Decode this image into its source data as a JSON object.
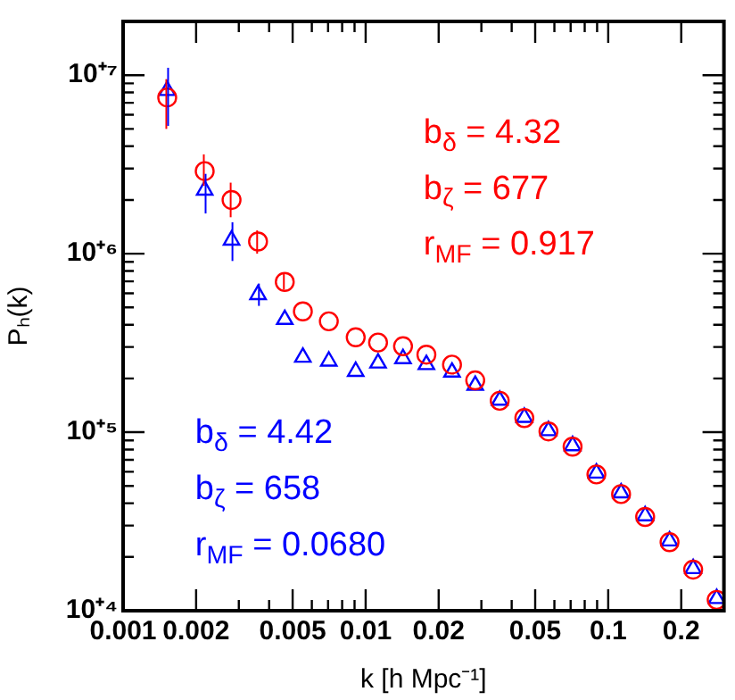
{
  "chart_data": {
    "type": "scatter",
    "xlabel": "k [h Mpc⁻¹]",
    "ylabel": "Pₕ(k)",
    "log": "xy",
    "grid": false,
    "legend": false,
    "xlim": [
      0.001,
      0.3
    ],
    "xticks": [
      0.001,
      0.002,
      {
        "value": 0.003,
        "label": null
      },
      {
        "value": 0.004,
        "label": null
      },
      0.005,
      {
        "value": 0.006,
        "label": null
      },
      {
        "value": 0.007,
        "label": null
      },
      {
        "value": 0.008,
        "label": null
      },
      {
        "value": 0.009,
        "label": null
      },
      0.01,
      0.02,
      {
        "value": 0.03,
        "label": null
      },
      {
        "value": 0.04,
        "label": null
      },
      0.05,
      {
        "value": 0.06,
        "label": null
      },
      {
        "value": 0.07,
        "label": null
      },
      {
        "value": 0.08,
        "label": null
      },
      {
        "value": 0.09,
        "label": null
      },
      0.1,
      0.2
    ],
    "ylim": [
      10000,
      20000000
    ],
    "yticks": [
      {
        "value": 10000,
        "label": "10⁺⁴"
      },
      {
        "value": 20000,
        "label": null
      },
      {
        "value": 30000,
        "label": null
      },
      {
        "value": 40000,
        "label": null
      },
      {
        "value": 50000,
        "label": null
      },
      {
        "value": 60000,
        "label": null
      },
      {
        "value": 70000,
        "label": null
      },
      {
        "value": 80000,
        "label": null
      },
      {
        "value": 90000,
        "label": null
      },
      {
        "value": 100000,
        "label": "10⁺⁵"
      },
      {
        "value": 200000,
        "label": null
      },
      {
        "value": 300000,
        "label": null
      },
      {
        "value": 400000,
        "label": null
      },
      {
        "value": 500000,
        "label": null
      },
      {
        "value": 600000,
        "label": null
      },
      {
        "value": 700000,
        "label": null
      },
      {
        "value": 800000,
        "label": null
      },
      {
        "value": 900000,
        "label": null
      },
      {
        "value": 1000000,
        "label": "10⁺⁶"
      },
      {
        "value": 2000000,
        "label": null
      },
      {
        "value": 3000000,
        "label": null
      },
      {
        "value": 4000000,
        "label": null
      },
      {
        "value": 5000000,
        "label": null
      },
      {
        "value": 6000000,
        "label": null
      },
      {
        "value": 7000000,
        "label": null
      },
      {
        "value": 8000000,
        "label": null
      },
      {
        "value": 9000000,
        "label": null
      },
      {
        "value": 10000000,
        "label": "10⁺⁷"
      }
    ],
    "x": [
      0.00152,
      0.00217,
      0.0028,
      0.0036,
      0.00464,
      0.00551,
      0.00705,
      0.0091,
      0.01125,
      0.01426,
      0.0178,
      0.0227,
      0.0283,
      0.0357,
      0.0451,
      0.0567,
      0.0713,
      0.0894,
      0.113,
      0.142,
      0.179,
      0.224,
      0.28
    ],
    "series": [
      {
        "color": "#ff0000",
        "marker": "circle",
        "values": [
          7500000,
          2900000,
          2000000,
          1170000,
          695000,
          475000,
          418000,
          340000,
          318000,
          303000,
          272000,
          239000,
          195000,
          150000,
          120000,
          101000,
          83000,
          58000,
          45000,
          33500,
          24200,
          17000,
          11500
        ],
        "errors": [
          [
            5000000,
            9500000
          ],
          [
            2400000,
            3600000
          ],
          [
            1600000,
            2500000
          ],
          [
            1000000,
            1350000
          ],
          [
            630000,
            770000
          ],
          null,
          null,
          null,
          null,
          null,
          null,
          null,
          null,
          null,
          null,
          null,
          null,
          null,
          null,
          null,
          null,
          null,
          null
        ]
      },
      {
        "color": "#0000ff",
        "marker": "triangle",
        "values": [
          8200000,
          2270000,
          1190000,
          590000,
          428000,
          263000,
          250000,
          219000,
          244000,
          258000,
          239000,
          217000,
          183000,
          151000,
          121000,
          102000,
          84000,
          59000,
          45700,
          34000,
          24600,
          17200,
          11700
        ],
        "errors": [
          [
            5200000,
            11000000
          ],
          [
            1680000,
            2800000
          ],
          [
            910000,
            1500000
          ],
          [
            510000,
            680000
          ],
          null,
          null,
          null,
          null,
          null,
          null,
          null,
          null,
          null,
          null,
          null,
          null,
          null,
          null,
          null,
          null,
          null,
          null,
          null
        ]
      }
    ],
    "annotations": [
      "b$_{δ}$ = 4.32",
      "b$_{ζ}$ = 677",
      "r$_{MF}$ = 0.917",
      "b$_{δ}$ = 4.42",
      "b$_{ζ}$ = 658",
      "r$_{MF}$ = 0.0680"
    ]
  }
}
